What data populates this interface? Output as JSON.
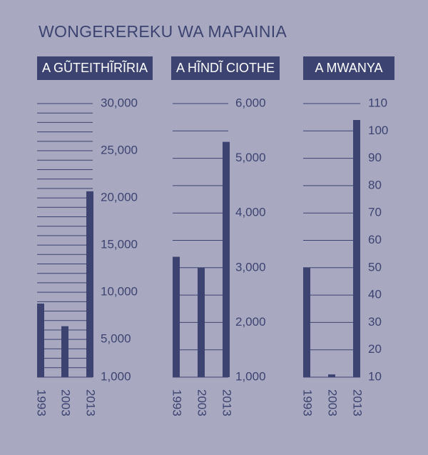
{
  "title": "WONGEREREKU WA MAPAINIA",
  "colors": {
    "background": "#a8a9c1",
    "bar": "#3c4370",
    "text": "#3c4370",
    "header_text": "#ffffff"
  },
  "chart_data": [
    {
      "type": "bar",
      "title": "A GŨTEITHĨRĨRIA",
      "categories": [
        "1993",
        "2003",
        "2013"
      ],
      "values": [
        8800,
        6400,
        20700
      ],
      "ylim": [
        1000,
        30000
      ],
      "ticks": [
        {
          "value": 30000,
          "label": "30,000"
        },
        {
          "value": 25000,
          "label": "25,000"
        },
        {
          "value": 20000,
          "label": "20,000"
        },
        {
          "value": 15000,
          "label": "15,000"
        },
        {
          "value": 10000,
          "label": "10,000"
        },
        {
          "value": 5000,
          "label": "5,000"
        },
        {
          "value": 1000,
          "label": "1,000"
        }
      ],
      "grid_step": 1000
    },
    {
      "type": "bar",
      "title": "A HĨNDĨ CIOTHE",
      "categories": [
        "1993",
        "2003",
        "2013"
      ],
      "values": [
        3200,
        3000,
        5300
      ],
      "ylim": [
        1000,
        6000
      ],
      "ticks": [
        {
          "value": 6000,
          "label": "6,000"
        },
        {
          "value": 5000,
          "label": "5,000"
        },
        {
          "value": 4000,
          "label": "4,000"
        },
        {
          "value": 3000,
          "label": "3,000"
        },
        {
          "value": 2000,
          "label": "2,000"
        },
        {
          "value": 1000,
          "label": "1,000"
        }
      ],
      "grid_step": 500
    },
    {
      "type": "bar",
      "title": "A MWANYA",
      "categories": [
        "1993",
        "2003",
        "2013"
      ],
      "values": [
        50,
        11,
        104
      ],
      "ylim": [
        10,
        110
      ],
      "ticks": [
        {
          "value": 110,
          "label": "110"
        },
        {
          "value": 100,
          "label": "100"
        },
        {
          "value": 90,
          "label": "90"
        },
        {
          "value": 80,
          "label": "80"
        },
        {
          "value": 70,
          "label": "70"
        },
        {
          "value": 60,
          "label": "60"
        },
        {
          "value": 50,
          "label": "50"
        },
        {
          "value": 40,
          "label": "40"
        },
        {
          "value": 30,
          "label": "30"
        },
        {
          "value": 20,
          "label": "20"
        },
        {
          "value": 10,
          "label": "10"
        }
      ],
      "grid_step": 10
    }
  ]
}
